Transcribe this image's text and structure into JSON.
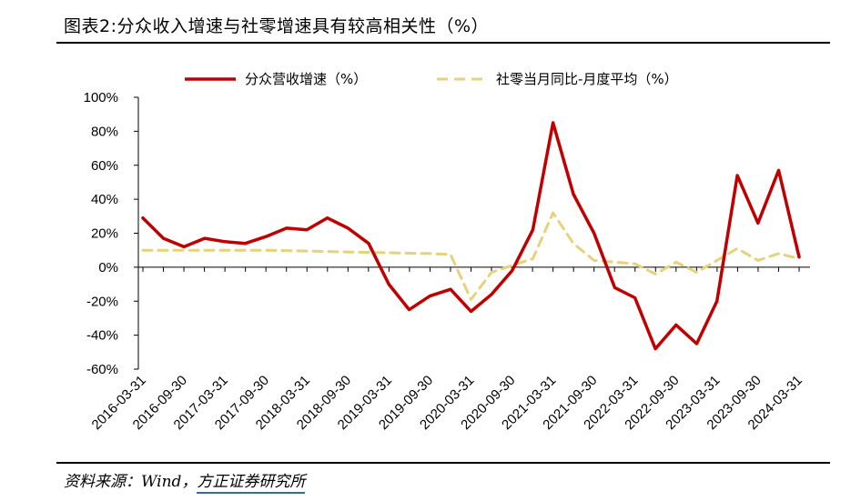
{
  "title": "图表2:分众收入增速与社零增速具有较高相关性（%）",
  "source": {
    "prefix": "资料来源：Wind，",
    "brand": "方正证券研究所"
  },
  "colors": {
    "series1": "#c00000",
    "series2": "#e6d27a",
    "axis": "#000000"
  },
  "chart_data": {
    "type": "line",
    "ylim": [
      -60,
      100
    ],
    "yticks": [
      "100%",
      "80%",
      "60%",
      "40%",
      "20%",
      "0%",
      "-20%",
      "-40%",
      "-60%"
    ],
    "ytick_values": [
      100,
      80,
      60,
      40,
      20,
      0,
      -20,
      -40,
      -60
    ],
    "x_tick_labels": [
      "2016-03-31",
      "2016-09-30",
      "2017-03-31",
      "2017-09-30",
      "2018-03-31",
      "2018-09-30",
      "2019-03-31",
      "2019-09-30",
      "2020-03-31",
      "2020-09-30",
      "2021-03-31",
      "2021-09-30",
      "2022-03-31",
      "2022-09-30",
      "2023-03-31",
      "2023-09-30",
      "2024-03-31"
    ],
    "legend_position": "top",
    "series": [
      {
        "name": "分众营收增速（%）",
        "style": "solid",
        "points": [
          [
            "2016-03-31",
            29
          ],
          [
            "2016-06-30",
            17
          ],
          [
            "2016-09-30",
            12
          ],
          [
            "2016-12-31",
            17
          ],
          [
            "2017-03-31",
            15
          ],
          [
            "2017-06-30",
            14
          ],
          [
            "2017-09-30",
            18
          ],
          [
            "2017-12-31",
            23
          ],
          [
            "2018-03-31",
            22
          ],
          [
            "2018-06-30",
            29
          ],
          [
            "2018-09-30",
            23
          ],
          [
            "2018-12-31",
            14
          ],
          [
            "2019-03-31",
            -10
          ],
          [
            "2019-06-30",
            -25
          ],
          [
            "2019-09-30",
            -17
          ],
          [
            "2019-12-31",
            -13
          ],
          [
            "2020-03-31",
            -26
          ],
          [
            "2020-06-30",
            -16
          ],
          [
            "2020-09-30",
            -2
          ],
          [
            "2020-12-31",
            22
          ],
          [
            "2021-03-31",
            85
          ],
          [
            "2021-06-30",
            43
          ],
          [
            "2021-09-30",
            20
          ],
          [
            "2021-12-31",
            -12
          ],
          [
            "2022-03-31",
            -18
          ],
          [
            "2022-06-30",
            -48
          ],
          [
            "2022-09-30",
            -34
          ],
          [
            "2022-12-31",
            -45
          ],
          [
            "2023-03-31",
            -20
          ],
          [
            "2023-06-30",
            54
          ],
          [
            "2023-09-30",
            26
          ],
          [
            "2023-12-31",
            57
          ],
          [
            "2024-03-31",
            6
          ]
        ]
      },
      {
        "name": "社零当月同比-月度平均（%）",
        "style": "dashed",
        "points": [
          [
            "2016-03-31",
            10
          ],
          [
            "2016-09-30",
            10
          ],
          [
            "2017-03-31",
            10
          ],
          [
            "2017-09-30",
            10
          ],
          [
            "2018-03-31",
            9.5
          ],
          [
            "2018-09-30",
            9
          ],
          [
            "2019-03-31",
            8.5
          ],
          [
            "2019-09-30",
            8
          ],
          [
            "2019-12-31",
            7.5
          ],
          [
            "2020-03-31",
            -19
          ],
          [
            "2020-06-30",
            -3
          ],
          [
            "2020-09-30",
            1
          ],
          [
            "2020-12-31",
            5
          ],
          [
            "2021-03-31",
            32
          ],
          [
            "2021-06-30",
            14
          ],
          [
            "2021-09-30",
            4
          ],
          [
            "2021-12-31",
            3
          ],
          [
            "2022-03-31",
            2
          ],
          [
            "2022-06-30",
            -4
          ],
          [
            "2022-09-30",
            3
          ],
          [
            "2022-12-31",
            -3
          ],
          [
            "2023-03-31",
            4
          ],
          [
            "2023-06-30",
            11
          ],
          [
            "2023-09-30",
            4
          ],
          [
            "2023-12-31",
            8
          ],
          [
            "2024-03-31",
            5
          ]
        ]
      }
    ]
  }
}
